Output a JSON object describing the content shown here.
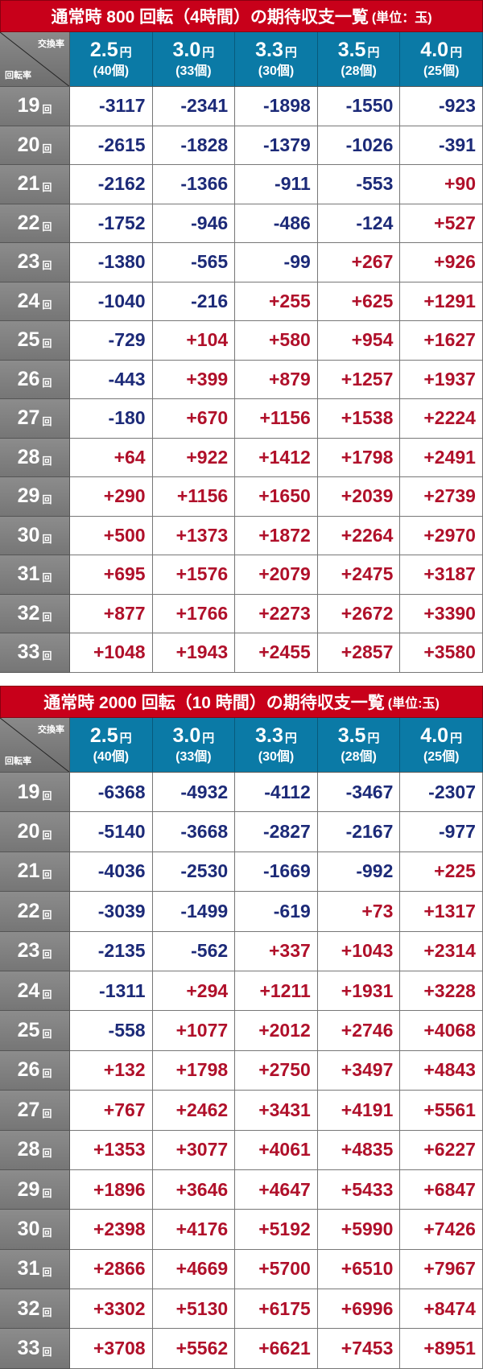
{
  "colors": {
    "title_bg": "#c8001a",
    "header_bg": "#0b7aa6",
    "negative": "#1c2a78",
    "positive": "#b0102a",
    "row_label_bg": "#7f7f7f"
  },
  "corner": {
    "top_label": "交換率",
    "bottom_label": "回転率"
  },
  "rate_headers": [
    {
      "rate": "2.5",
      "yen": "円",
      "count": "(40個)"
    },
    {
      "rate": "3.0",
      "yen": "円",
      "count": "(33個)"
    },
    {
      "rate": "3.3",
      "yen": "円",
      "count": "(30個)"
    },
    {
      "rate": "3.5",
      "yen": "円",
      "count": "(28個)"
    },
    {
      "rate": "4.0",
      "yen": "円",
      "count": "(25個)"
    }
  ],
  "row_suffix": "回",
  "tables": [
    {
      "title": "通常時 800 回転（4時間）の期待収支一覧",
      "unit": "(単位：玉)",
      "rows": [
        {
          "spin": "19",
          "values": [
            "-3117",
            "-2341",
            "-1898",
            "-1550",
            "-923"
          ]
        },
        {
          "spin": "20",
          "values": [
            "-2615",
            "-1828",
            "-1379",
            "-1026",
            "-391"
          ]
        },
        {
          "spin": "21",
          "values": [
            "-2162",
            "-1366",
            "-911",
            "-553",
            "+90"
          ]
        },
        {
          "spin": "22",
          "values": [
            "-1752",
            "-946",
            "-486",
            "-124",
            "+527"
          ]
        },
        {
          "spin": "23",
          "values": [
            "-1380",
            "-565",
            "-99",
            "+267",
            "+926"
          ]
        },
        {
          "spin": "24",
          "values": [
            "-1040",
            "-216",
            "+255",
            "+625",
            "+1291"
          ]
        },
        {
          "spin": "25",
          "values": [
            "-729",
            "+104",
            "+580",
            "+954",
            "+1627"
          ]
        },
        {
          "spin": "26",
          "values": [
            "-443",
            "+399",
            "+879",
            "+1257",
            "+1937"
          ]
        },
        {
          "spin": "27",
          "values": [
            "-180",
            "+670",
            "+1156",
            "+1538",
            "+2224"
          ]
        },
        {
          "spin": "28",
          "values": [
            "+64",
            "+922",
            "+1412",
            "+1798",
            "+2491"
          ]
        },
        {
          "spin": "29",
          "values": [
            "+290",
            "+1156",
            "+1650",
            "+2039",
            "+2739"
          ]
        },
        {
          "spin": "30",
          "values": [
            "+500",
            "+1373",
            "+1872",
            "+2264",
            "+2970"
          ]
        },
        {
          "spin": "31",
          "values": [
            "+695",
            "+1576",
            "+2079",
            "+2475",
            "+3187"
          ]
        },
        {
          "spin": "32",
          "values": [
            "+877",
            "+1766",
            "+2273",
            "+2672",
            "+3390"
          ]
        },
        {
          "spin": "33",
          "values": [
            "+1048",
            "+1943",
            "+2455",
            "+2857",
            "+3580"
          ]
        }
      ]
    },
    {
      "title": "通常時 2000 回転（10 時間）の期待収支一覧",
      "unit": "(単位:玉)",
      "rows": [
        {
          "spin": "19",
          "values": [
            "-6368",
            "-4932",
            "-4112",
            "-3467",
            "-2307"
          ]
        },
        {
          "spin": "20",
          "values": [
            "-5140",
            "-3668",
            "-2827",
            "-2167",
            "-977"
          ]
        },
        {
          "spin": "21",
          "values": [
            "-4036",
            "-2530",
            "-1669",
            "-992",
            "+225"
          ]
        },
        {
          "spin": "22",
          "values": [
            "-3039",
            "-1499",
            "-619",
            "+73",
            "+1317"
          ]
        },
        {
          "spin": "23",
          "values": [
            "-2135",
            "-562",
            "+337",
            "+1043",
            "+2314"
          ]
        },
        {
          "spin": "24",
          "values": [
            "-1311",
            "+294",
            "+1211",
            "+1931",
            "+3228"
          ]
        },
        {
          "spin": "25",
          "values": [
            "-558",
            "+1077",
            "+2012",
            "+2746",
            "+4068"
          ]
        },
        {
          "spin": "26",
          "values": [
            "+132",
            "+1798",
            "+2750",
            "+3497",
            "+4843"
          ]
        },
        {
          "spin": "27",
          "values": [
            "+767",
            "+2462",
            "+3431",
            "+4191",
            "+5561"
          ]
        },
        {
          "spin": "28",
          "values": [
            "+1353",
            "+3077",
            "+4061",
            "+4835",
            "+6227"
          ]
        },
        {
          "spin": "29",
          "values": [
            "+1896",
            "+3646",
            "+4647",
            "+5433",
            "+6847"
          ]
        },
        {
          "spin": "30",
          "values": [
            "+2398",
            "+4176",
            "+5192",
            "+5990",
            "+7426"
          ]
        },
        {
          "spin": "31",
          "values": [
            "+2866",
            "+4669",
            "+5700",
            "+6510",
            "+7967"
          ]
        },
        {
          "spin": "32",
          "values": [
            "+3302",
            "+5130",
            "+6175",
            "+6996",
            "+8474"
          ]
        },
        {
          "spin": "33",
          "values": [
            "+3708",
            "+5562",
            "+6621",
            "+7453",
            "+8951"
          ]
        }
      ]
    }
  ]
}
